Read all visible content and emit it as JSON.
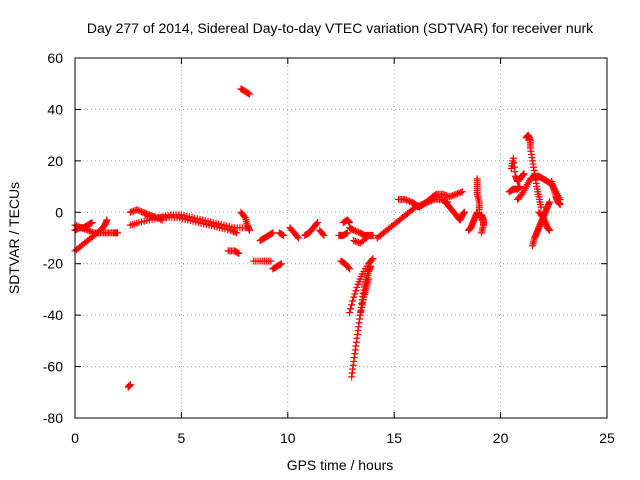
{
  "chart_data": {
    "type": "scatter",
    "title": "Day 277 of 2014, Sidereal Day-to-day VTEC variation (SDTVAR) for receiver nurk",
    "xlabel": "GPS time / hours",
    "ylabel": "SDTVAR / TECUs",
    "xlim": [
      0,
      25
    ],
    "ylim": [
      -80,
      60
    ],
    "xticks": [
      0,
      5,
      10,
      15,
      20,
      25
    ],
    "yticks": [
      -80,
      -60,
      -40,
      -20,
      0,
      20,
      40,
      60
    ],
    "xtick_labels": [
      "0",
      "5",
      "10",
      "15",
      "20",
      "25"
    ],
    "ytick_labels": [
      "-80",
      "-60",
      "-40",
      "-20",
      "0",
      "20",
      "40",
      "60"
    ],
    "grid": true,
    "legend": "none",
    "marker": "plus",
    "color": "#ff0000",
    "series": [
      {
        "name": "arc-a1",
        "points": [
          [
            0.0,
            -5
          ],
          [
            0.3,
            -6
          ],
          [
            0.6,
            -7
          ],
          [
            0.9,
            -8
          ],
          [
            1.2,
            -8
          ],
          [
            1.5,
            -8
          ],
          [
            1.8,
            -8
          ],
          [
            2.0,
            -8
          ]
        ]
      },
      {
        "name": "arc-a2",
        "points": [
          [
            0.0,
            -15
          ],
          [
            0.3,
            -13
          ],
          [
            0.6,
            -11
          ],
          [
            0.9,
            -9
          ],
          [
            1.2,
            -7
          ],
          [
            1.4,
            -5
          ],
          [
            1.5,
            -3
          ]
        ]
      },
      {
        "name": "arc-a3",
        "points": [
          [
            0.0,
            -7
          ],
          [
            0.2,
            -6
          ],
          [
            0.4,
            -6
          ],
          [
            0.6,
            -5
          ],
          [
            0.8,
            -4
          ]
        ]
      },
      {
        "name": "arc-b",
        "points": [
          [
            2.5,
            -68
          ],
          [
            2.6,
            -67
          ]
        ]
      },
      {
        "name": "arc-c",
        "points": [
          [
            2.6,
            0
          ],
          [
            2.9,
            1
          ],
          [
            3.2,
            0
          ],
          [
            3.5,
            -1
          ],
          [
            3.8,
            -2
          ],
          [
            4.1,
            -3
          ]
        ]
      },
      {
        "name": "arc-d",
        "points": [
          [
            2.6,
            -5
          ],
          [
            3.0,
            -4
          ],
          [
            3.5,
            -3
          ],
          [
            4.0,
            -2
          ],
          [
            4.5,
            -1
          ],
          [
            5.0,
            -1
          ],
          [
            5.5,
            -2
          ],
          [
            6.0,
            -3
          ],
          [
            6.5,
            -4
          ],
          [
            7.0,
            -5
          ],
          [
            7.5,
            -6
          ],
          [
            8.0,
            -6
          ]
        ]
      },
      {
        "name": "arc-e",
        "points": [
          [
            3.3,
            -1
          ],
          [
            3.8,
            -2
          ],
          [
            4.3,
            -2
          ],
          [
            4.8,
            -2
          ],
          [
            5.3,
            -3
          ],
          [
            5.8,
            -4
          ],
          [
            6.3,
            -5
          ],
          [
            6.8,
            -6
          ],
          [
            7.3,
            -7
          ],
          [
            7.6,
            -8
          ]
        ]
      },
      {
        "name": "arc-f",
        "points": [
          [
            7.8,
            0
          ],
          [
            8.0,
            -2
          ],
          [
            8.1,
            -5
          ],
          [
            8.2,
            -7
          ]
        ]
      },
      {
        "name": "arc-g",
        "points": [
          [
            7.2,
            -15
          ],
          [
            7.5,
            -15
          ],
          [
            7.7,
            -16
          ]
        ]
      },
      {
        "name": "arc-h",
        "points": [
          [
            7.8,
            48
          ],
          [
            8.0,
            47
          ],
          [
            8.2,
            46
          ]
        ]
      },
      {
        "name": "arc-i",
        "points": [
          [
            8.4,
            -19
          ],
          [
            8.8,
            -19
          ],
          [
            9.2,
            -19
          ]
        ]
      },
      {
        "name": "arc-j",
        "points": [
          [
            9.3,
            -22
          ],
          [
            9.5,
            -21
          ],
          [
            9.7,
            -20
          ]
        ]
      },
      {
        "name": "arc-k",
        "points": [
          [
            8.7,
            -11
          ],
          [
            8.9,
            -10
          ],
          [
            9.1,
            -9
          ],
          [
            9.3,
            -8
          ]
        ]
      },
      {
        "name": "arc-l",
        "points": [
          [
            9.6,
            -8
          ],
          [
            9.8,
            -9
          ]
        ]
      },
      {
        "name": "arc-m",
        "points": [
          [
            10.1,
            -6
          ],
          [
            10.3,
            -8
          ],
          [
            10.5,
            -10
          ]
        ]
      },
      {
        "name": "arc-n",
        "points": [
          [
            10.8,
            -9
          ],
          [
            11.0,
            -8
          ],
          [
            11.2,
            -6
          ],
          [
            11.4,
            -4
          ]
        ]
      },
      {
        "name": "arc-o",
        "points": [
          [
            11.5,
            -7
          ],
          [
            11.7,
            -9
          ]
        ]
      },
      {
        "name": "arc-p",
        "points": [
          [
            12.4,
            -9
          ],
          [
            12.6,
            -9
          ],
          [
            12.8,
            -8
          ]
        ]
      },
      {
        "name": "arc-q",
        "points": [
          [
            12.6,
            -4
          ],
          [
            12.8,
            -3
          ],
          [
            12.9,
            -4
          ]
        ]
      },
      {
        "name": "arc-r",
        "points": [
          [
            12.5,
            -19
          ],
          [
            12.7,
            -20
          ],
          [
            12.9,
            -22
          ]
        ]
      },
      {
        "name": "arc-s",
        "points": [
          [
            12.9,
            -6
          ],
          [
            13.1,
            -7
          ],
          [
            13.4,
            -8
          ],
          [
            13.6,
            -9
          ],
          [
            13.8,
            -9
          ],
          [
            14.0,
            -9
          ]
        ]
      },
      {
        "name": "arc-t",
        "points": [
          [
            13.1,
            -11
          ],
          [
            13.4,
            -12
          ],
          [
            13.7,
            -10
          ]
        ]
      },
      {
        "name": "arc-u",
        "points": [
          [
            12.9,
            -39
          ],
          [
            13.1,
            -33
          ],
          [
            13.3,
            -28
          ],
          [
            13.5,
            -24
          ],
          [
            13.8,
            -20
          ],
          [
            14.0,
            -18
          ]
        ]
      },
      {
        "name": "arc-v",
        "points": [
          [
            13.0,
            -64
          ],
          [
            13.1,
            -58
          ],
          [
            13.2,
            -52
          ],
          [
            13.3,
            -46
          ],
          [
            13.4,
            -40
          ],
          [
            13.5,
            -34
          ],
          [
            13.6,
            -29
          ],
          [
            13.7,
            -26
          ],
          [
            13.8,
            -23
          ],
          [
            13.9,
            -21
          ]
        ]
      },
      {
        "name": "arc-w",
        "points": [
          [
            13.4,
            -40
          ],
          [
            13.5,
            -36
          ],
          [
            13.6,
            -32
          ],
          [
            13.7,
            -29
          ],
          [
            13.8,
            -26
          ]
        ]
      },
      {
        "name": "arc-x",
        "points": [
          [
            14.2,
            -10
          ],
          [
            14.5,
            -8
          ],
          [
            14.8,
            -6
          ],
          [
            15.1,
            -4
          ],
          [
            15.4,
            -2
          ],
          [
            15.7,
            0
          ],
          [
            16.0,
            2
          ],
          [
            16.3,
            3
          ],
          [
            16.6,
            4
          ],
          [
            16.9,
            5
          ],
          [
            17.2,
            5
          ],
          [
            17.5,
            4
          ]
        ]
      },
      {
        "name": "arc-y",
        "points": [
          [
            15.2,
            5
          ],
          [
            15.5,
            5
          ],
          [
            15.8,
            4
          ],
          [
            16.0,
            3
          ],
          [
            16.2,
            2
          ],
          [
            16.5,
            4
          ],
          [
            16.8,
            6
          ],
          [
            17.0,
            7
          ],
          [
            17.3,
            7
          ],
          [
            17.6,
            6
          ],
          [
            17.9,
            7
          ],
          [
            18.2,
            8
          ]
        ]
      },
      {
        "name": "arc-z",
        "points": [
          [
            17.4,
            4
          ],
          [
            17.6,
            2
          ],
          [
            17.8,
            0
          ],
          [
            18.0,
            -2
          ],
          [
            18.1,
            -3
          ],
          [
            18.2,
            -1
          ],
          [
            18.3,
            0
          ]
        ]
      },
      {
        "name": "arc-aa",
        "points": [
          [
            18.5,
            -7
          ],
          [
            18.6,
            -6
          ],
          [
            18.7,
            -4
          ],
          [
            18.8,
            -2
          ],
          [
            18.9,
            0
          ]
        ]
      },
      {
        "name": "arc-ab",
        "points": [
          [
            18.9,
            13
          ],
          [
            18.9,
            10
          ],
          [
            18.9,
            7
          ],
          [
            19.0,
            4
          ],
          [
            19.0,
            1
          ]
        ]
      },
      {
        "name": "arc-ac",
        "points": [
          [
            19.0,
            -2
          ],
          [
            19.1,
            -1
          ],
          [
            19.2,
            -3
          ],
          [
            19.2,
            -5
          ],
          [
            19.1,
            -8
          ]
        ]
      },
      {
        "name": "arc-ad",
        "points": [
          [
            20.4,
            8
          ],
          [
            20.6,
            9
          ],
          [
            20.8,
            9
          ],
          [
            20.9,
            10
          ]
        ]
      },
      {
        "name": "arc-ae",
        "points": [
          [
            20.5,
            17
          ],
          [
            20.6,
            21
          ],
          [
            20.7,
            14
          ],
          [
            20.8,
            12
          ],
          [
            20.9,
            13
          ],
          [
            21.0,
            14
          ],
          [
            21.1,
            15
          ]
        ]
      },
      {
        "name": "arc-af",
        "points": [
          [
            20.8,
            5
          ],
          [
            21.0,
            7
          ],
          [
            21.2,
            10
          ],
          [
            21.4,
            13
          ],
          [
            21.6,
            14
          ],
          [
            21.8,
            14
          ],
          [
            22.0,
            13
          ],
          [
            22.2,
            12
          ],
          [
            22.4,
            11
          ],
          [
            22.6,
            8
          ],
          [
            22.8,
            5
          ]
        ]
      },
      {
        "name": "arc-ag",
        "points": [
          [
            21.2,
            29
          ],
          [
            21.3,
            30
          ],
          [
            21.4,
            28
          ],
          [
            21.4,
            25
          ],
          [
            21.5,
            20
          ],
          [
            21.6,
            15
          ],
          [
            21.7,
            10
          ],
          [
            21.8,
            6
          ],
          [
            21.9,
            2
          ]
        ]
      },
      {
        "name": "arc-ah",
        "points": [
          [
            21.5,
            -13
          ],
          [
            21.6,
            -10
          ],
          [
            21.7,
            -8
          ],
          [
            21.8,
            -6
          ],
          [
            21.9,
            -4
          ],
          [
            22.0,
            -2
          ],
          [
            22.1,
            0
          ],
          [
            22.2,
            2
          ],
          [
            22.3,
            4
          ]
        ]
      },
      {
        "name": "arc-ai",
        "points": [
          [
            21.8,
            0
          ],
          [
            22.0,
            -2
          ],
          [
            22.1,
            -4
          ],
          [
            22.2,
            -6
          ],
          [
            22.3,
            -7
          ]
        ]
      },
      {
        "name": "arc-aj",
        "points": [
          [
            22.4,
            12
          ],
          [
            22.5,
            9
          ],
          [
            22.6,
            6
          ],
          [
            22.7,
            4
          ],
          [
            22.8,
            3
          ]
        ]
      }
    ]
  }
}
